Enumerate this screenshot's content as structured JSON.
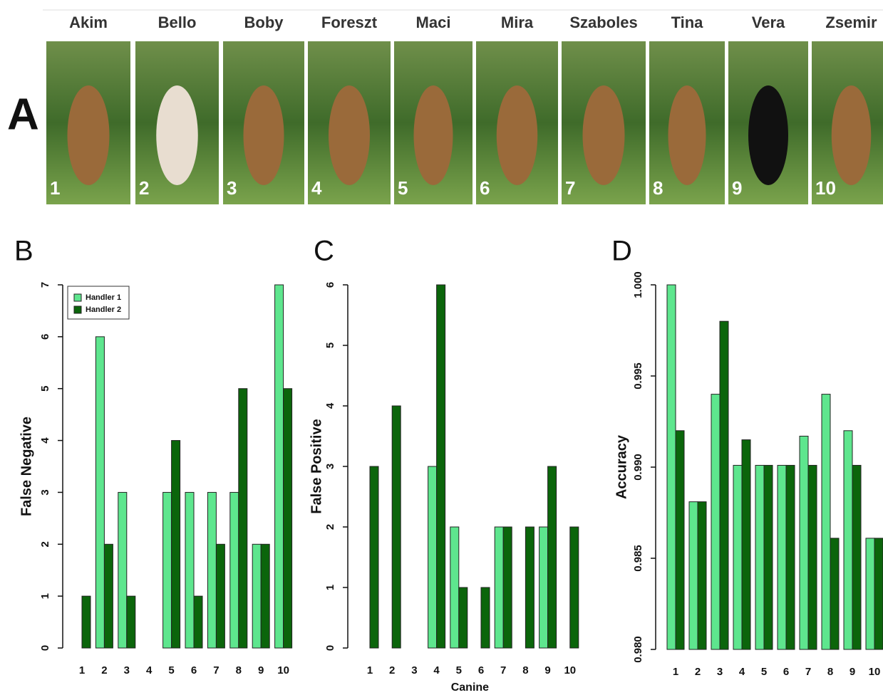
{
  "panel_a": {
    "label": "A",
    "dogs": [
      {
        "name": "Akim",
        "number": 1
      },
      {
        "name": "Bello",
        "number": 2
      },
      {
        "name": "Boby",
        "number": 3
      },
      {
        "name": "Foreszt",
        "number": 4
      },
      {
        "name": "Maci",
        "number": 5
      },
      {
        "name": "Mira",
        "number": 6
      },
      {
        "name": "Szaboles",
        "number": 7
      },
      {
        "name": "Tina",
        "number": 8
      },
      {
        "name": "Vera",
        "number": 9
      },
      {
        "name": "Zsemir",
        "number": 10
      }
    ]
  },
  "chart_data": [
    {
      "type": "bar",
      "panel": "B",
      "ylabel": "False Negative",
      "categories": [
        1,
        2,
        3,
        4,
        5,
        6,
        7,
        8,
        9,
        10
      ],
      "series": [
        {
          "name": "Handler 1",
          "color": "#5ee68e",
          "values": [
            0,
            6,
            3,
            0,
            3,
            3,
            3,
            3,
            2,
            7
          ]
        },
        {
          "name": "Handler 2",
          "color": "#0b650b",
          "values": [
            1,
            2,
            1,
            0,
            4,
            1,
            2,
            5,
            2,
            5
          ]
        }
      ],
      "ylim": [
        0,
        7
      ],
      "yticks": [
        0,
        1,
        2,
        3,
        4,
        5,
        6,
        7
      ],
      "legend": "upper-left"
    },
    {
      "type": "bar",
      "panel": "C",
      "ylabel": "False Positive",
      "xlabel": "Canine",
      "categories": [
        1,
        2,
        3,
        4,
        5,
        6,
        7,
        8,
        9,
        10
      ],
      "series": [
        {
          "color": "#5ee68e",
          "values": [
            0,
            0,
            0,
            3,
            2,
            0,
            2,
            0,
            2,
            0
          ]
        },
        {
          "color": "#0b650b",
          "values": [
            3,
            4,
            0,
            6,
            1,
            1,
            2,
            2,
            3,
            2
          ]
        }
      ],
      "ylim": [
        0,
        6
      ],
      "yticks": [
        0,
        1,
        2,
        3,
        4,
        5,
        6
      ]
    },
    {
      "type": "bar",
      "panel": "D",
      "ylabel": "Accuracy",
      "categories": [
        1,
        2,
        3,
        4,
        5,
        6,
        7,
        8,
        9,
        10
      ],
      "series": [
        {
          "color": "#5ee68e",
          "values": [
            1.0,
            0.9881,
            0.994,
            0.9901,
            0.9901,
            0.9901,
            0.9917,
            0.994,
            0.992,
            0.9861
          ]
        },
        {
          "color": "#0b650b",
          "values": [
            0.992,
            0.9881,
            0.998,
            0.9915,
            0.9901,
            0.9901,
            0.9901,
            0.9861,
            0.9901,
            0.9861
          ]
        }
      ],
      "ylim": [
        0.98,
        1.0
      ],
      "yticks": [
        {
          "value": 0.98,
          "label": "0.980"
        },
        {
          "value": 0.985,
          "label": "0.985"
        },
        {
          "value": 0.99,
          "label": "0.990"
        },
        {
          "value": 0.995,
          "label": "0.995"
        },
        {
          "value": 1.0,
          "label": "1.000"
        }
      ]
    }
  ]
}
